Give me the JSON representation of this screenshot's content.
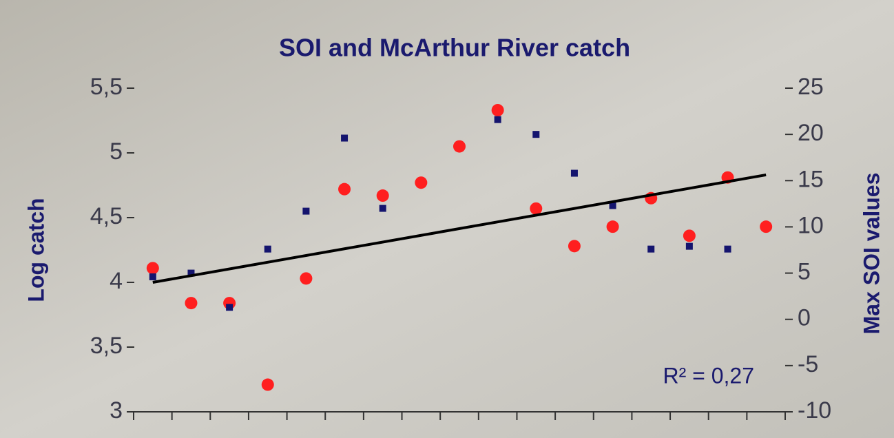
{
  "chart_data": {
    "type": "scatter",
    "title": "SOI and McArthur River catch",
    "y_label": "Log catch",
    "y2_label": "Max SOI values",
    "annotation": "R² = 0,27",
    "categories": [
      null,
      null,
      null,
      null,
      null,
      null,
      null,
      null,
      null,
      null,
      null,
      null,
      null,
      null,
      null,
      null,
      null
    ],
    "ylim": [
      3,
      5.5
    ],
    "yticks": [
      3,
      {
        "value": 3.5,
        "label": "3,5"
      },
      4,
      {
        "value": 4.5,
        "label": "4,5"
      },
      5,
      {
        "value": 5.5,
        "label": "5,5"
      }
    ],
    "y2lim": [
      -10,
      25
    ],
    "y2ticks": [
      -10,
      -5,
      0,
      5,
      10,
      15,
      20,
      25
    ],
    "series": [
      {
        "color": "#ff1f1f",
        "values": [
          4.11,
          3.84,
          3.84,
          3.21,
          4.03,
          4.72,
          4.67,
          4.77,
          5.05,
          5.33,
          4.57,
          4.28,
          4.43,
          4.65,
          4.36,
          4.81,
          4.43
        ]
      },
      {
        "color": "#14146e",
        "axis": "y2",
        "values": [
          4.6,
          5.0,
          1.3,
          7.6,
          11.7,
          19.6,
          12.0,
          null,
          null,
          21.6,
          20.0,
          15.8,
          12.3,
          7.6,
          7.9,
          7.6,
          null
        ]
      }
    ],
    "trendline": {
      "x": [
        0,
        16
      ],
      "values": [
        4.0,
        4.83
      ],
      "color": "#000000"
    }
  }
}
